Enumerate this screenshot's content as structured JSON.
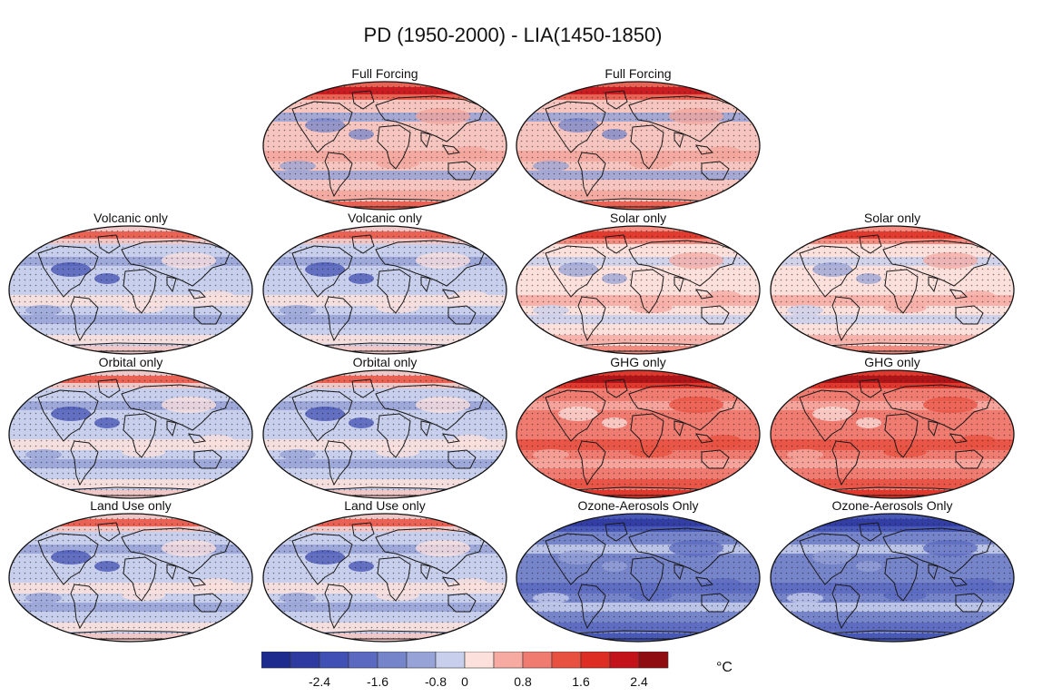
{
  "title": "PD (1950-2000) - LIA(1450-1850)",
  "colorbar": {
    "unit": "°C",
    "ticks": [
      "-2.4",
      "-1.6",
      "-0.8",
      "0",
      "0.8",
      "1.6",
      "2.4"
    ],
    "colors": [
      "#1d2b8f",
      "#2f3aa1",
      "#4150b4",
      "#5b69c0",
      "#7684c9",
      "#97a2d6",
      "#c8cfec",
      "#fce0dc",
      "#f6aaa2",
      "#f07b70",
      "#e8503f",
      "#de2d22",
      "#c4121a",
      "#8f0c10"
    ]
  },
  "panels": [
    {
      "label": "Full Forcing",
      "scheme": "pos"
    },
    {
      "label": "Full Forcing",
      "scheme": "pos"
    },
    {
      "label": "Volcanic only",
      "scheme": "neutral"
    },
    {
      "label": "Volcanic only",
      "scheme": "neutral"
    },
    {
      "label": "Solar only",
      "scheme": "warm"
    },
    {
      "label": "Solar only",
      "scheme": "warm"
    },
    {
      "label": "Orbital only",
      "scheme": "neutral"
    },
    {
      "label": "Orbital only",
      "scheme": "neutral"
    },
    {
      "label": "GHG only",
      "scheme": "hot"
    },
    {
      "label": "GHG only",
      "scheme": "hot"
    },
    {
      "label": "Land Use only",
      "scheme": "neutral"
    },
    {
      "label": "Land Use only",
      "scheme": "neutral"
    },
    {
      "label": "Ozone-Aerosols Only",
      "scheme": "cold"
    },
    {
      "label": "Ozone-Aerosols Only",
      "scheme": "cold"
    }
  ]
}
